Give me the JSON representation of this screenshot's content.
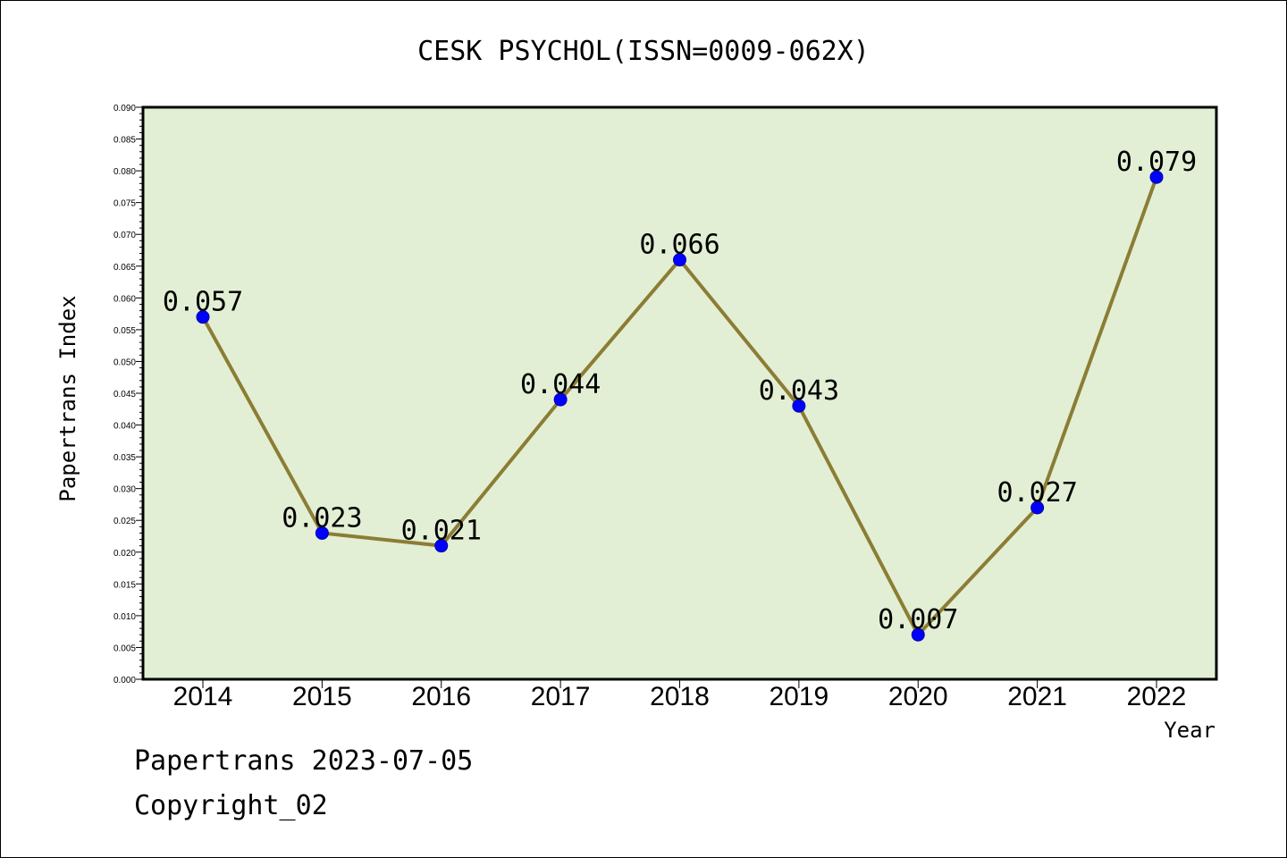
{
  "chart_data": {
    "type": "line",
    "title": "CESK PSYCHOL(ISSN=0009-062X)",
    "xlabel": "Year",
    "ylabel": "Papertrans Index",
    "categories": [
      "2014",
      "2015",
      "2016",
      "2017",
      "2018",
      "2019",
      "2020",
      "2021",
      "2022"
    ],
    "values": [
      0.057,
      0.023,
      0.021,
      0.044,
      0.066,
      0.043,
      0.007,
      0.027,
      0.079
    ],
    "data_labels": [
      "0.057",
      "0.023",
      "0.021",
      "0.044",
      "0.066",
      "0.043",
      "0.007",
      "0.027",
      "0.079"
    ],
    "ylim": [
      0,
      0.09
    ],
    "yticks": [
      "0.000",
      "0.005",
      "0.010",
      "0.015",
      "0.020",
      "0.025",
      "0.030",
      "0.035",
      "0.040",
      "0.045",
      "0.050",
      "0.055",
      "0.060",
      "0.065",
      "0.070",
      "0.075",
      "0.080",
      "0.085",
      "0.090"
    ],
    "grid": false,
    "colors": {
      "plot_background": "#e2efd5",
      "line": "#8b7d34",
      "marker": "#0000ff"
    }
  },
  "footer": {
    "line1": "Papertrans 2023-07-05",
    "line2": "Copyright_02"
  }
}
